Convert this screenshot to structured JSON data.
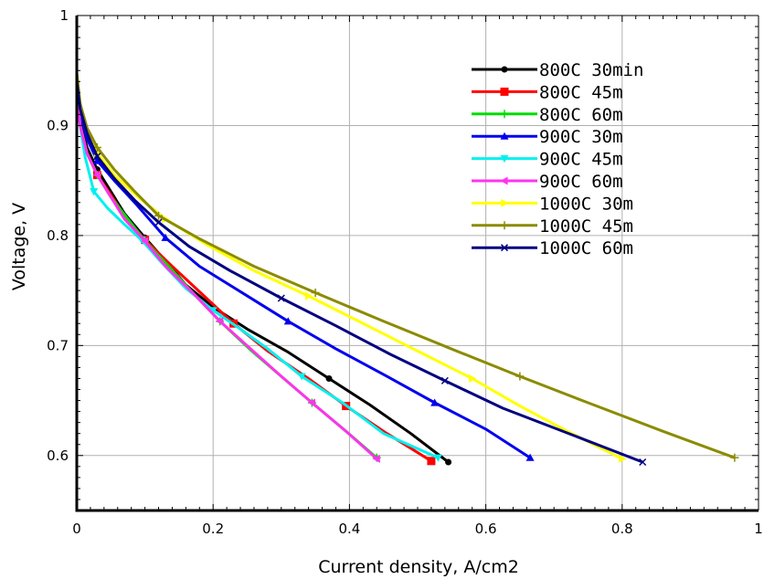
{
  "chart_data": {
    "type": "line",
    "title": "",
    "xlabel": "Current density, A/cm2",
    "ylabel": "Voltage, V",
    "xlim": [
      0,
      1
    ],
    "ylim": [
      0.55,
      1
    ],
    "xticks": [
      0,
      0.2,
      0.4,
      0.6,
      0.8,
      1
    ],
    "xtick_labels": [
      "0",
      "0.2",
      "0.4",
      "0.6",
      "0.8",
      "1"
    ],
    "yticks": [
      0.6,
      0.7,
      0.8,
      0.9,
      1
    ],
    "ytick_labels": [
      "0.6",
      "0.7",
      "0.8",
      "0.9",
      "1"
    ],
    "grid": true,
    "legend_position": "top-right",
    "series": [
      {
        "name": "800C 30min",
        "color": "#000000",
        "marker": "circle",
        "x": [
          0,
          0.005,
          0.015,
          0.03,
          0.05,
          0.07,
          0.1,
          0.13,
          0.16,
          0.2,
          0.25,
          0.31,
          0.37,
          0.43,
          0.49,
          0.545
        ],
        "y": [
          0.935,
          0.905,
          0.88,
          0.86,
          0.84,
          0.82,
          0.798,
          0.777,
          0.755,
          0.735,
          0.715,
          0.694,
          0.67,
          0.646,
          0.62,
          0.594
        ]
      },
      {
        "name": "800C 45m",
        "color": "#ff0000",
        "marker": "square",
        "x": [
          0,
          0.005,
          0.015,
          0.03,
          0.05,
          0.07,
          0.1,
          0.14,
          0.185,
          0.23,
          0.28,
          0.34,
          0.395,
          0.455,
          0.52
        ],
        "y": [
          0.93,
          0.9,
          0.875,
          0.855,
          0.837,
          0.818,
          0.796,
          0.772,
          0.746,
          0.72,
          0.695,
          0.67,
          0.645,
          0.62,
          0.595
        ]
      },
      {
        "name": "800C 60m",
        "color": "#00dd00",
        "marker": "plus",
        "x": [
          0,
          0.005,
          0.015,
          0.03,
          0.05,
          0.075,
          0.1,
          0.135,
          0.17,
          0.21,
          0.255,
          0.3,
          0.345,
          0.395,
          0.44
        ],
        "y": [
          0.93,
          0.9,
          0.875,
          0.855,
          0.835,
          0.815,
          0.795,
          0.772,
          0.748,
          0.722,
          0.696,
          0.672,
          0.648,
          0.622,
          0.598
        ]
      },
      {
        "name": "900C 30m",
        "color": "#0000ee",
        "marker": "triangle-up",
        "x": [
          0,
          0.005,
          0.015,
          0.03,
          0.055,
          0.085,
          0.13,
          0.18,
          0.245,
          0.31,
          0.38,
          0.455,
          0.525,
          0.6,
          0.665
        ],
        "y": [
          0.935,
          0.91,
          0.888,
          0.868,
          0.85,
          0.83,
          0.798,
          0.772,
          0.747,
          0.722,
          0.697,
          0.672,
          0.648,
          0.624,
          0.598
        ]
      },
      {
        "name": "900C 45m",
        "color": "#00f0f0",
        "marker": "triangle-down",
        "x": [
          0,
          0.005,
          0.012,
          0.025,
          0.045,
          0.07,
          0.095,
          0.125,
          0.16,
          0.2,
          0.24,
          0.28,
          0.33,
          0.39,
          0.45,
          0.53
        ],
        "y": [
          0.93,
          0.9,
          0.872,
          0.84,
          0.825,
          0.81,
          0.796,
          0.775,
          0.752,
          0.732,
          0.715,
          0.697,
          0.672,
          0.648,
          0.62,
          0.598
        ]
      },
      {
        "name": "900C 60m",
        "color": "#ff33ee",
        "marker": "triangle-left",
        "x": [
          0,
          0.005,
          0.015,
          0.03,
          0.05,
          0.07,
          0.1,
          0.13,
          0.17,
          0.21,
          0.255,
          0.3,
          0.345,
          0.395,
          0.44
        ],
        "y": [
          0.93,
          0.9,
          0.875,
          0.855,
          0.835,
          0.815,
          0.795,
          0.772,
          0.748,
          0.722,
          0.697,
          0.672,
          0.648,
          0.622,
          0.597
        ]
      },
      {
        "name": "1000C 30m",
        "color": "#ffff00",
        "marker": "triangle-right",
        "x": [
          0,
          0.005,
          0.015,
          0.03,
          0.055,
          0.09,
          0.13,
          0.19,
          0.26,
          0.34,
          0.42,
          0.5,
          0.58,
          0.65,
          0.72,
          0.8
        ],
        "y": [
          0.94,
          0.915,
          0.893,
          0.875,
          0.855,
          0.835,
          0.815,
          0.792,
          0.768,
          0.745,
          0.72,
          0.695,
          0.67,
          0.645,
          0.622,
          0.597
        ]
      },
      {
        "name": "1000C 45m",
        "color": "#8b8b00",
        "marker": "plus",
        "x": [
          0,
          0.005,
          0.015,
          0.03,
          0.055,
          0.085,
          0.12,
          0.18,
          0.26,
          0.35,
          0.45,
          0.545,
          0.65,
          0.75,
          0.86,
          0.965
        ],
        "y": [
          0.948,
          0.92,
          0.898,
          0.88,
          0.86,
          0.84,
          0.818,
          0.797,
          0.772,
          0.748,
          0.722,
          0.698,
          0.672,
          0.648,
          0.622,
          0.598
        ]
      },
      {
        "name": "1000C 60m",
        "color": "#000080",
        "marker": "x",
        "x": [
          0,
          0.005,
          0.015,
          0.03,
          0.055,
          0.085,
          0.12,
          0.165,
          0.225,
          0.3,
          0.38,
          0.46,
          0.54,
          0.625,
          0.73,
          0.83
        ],
        "y": [
          0.94,
          0.915,
          0.893,
          0.872,
          0.852,
          0.832,
          0.812,
          0.79,
          0.768,
          0.743,
          0.718,
          0.692,
          0.668,
          0.643,
          0.618,
          0.594
        ]
      }
    ]
  }
}
